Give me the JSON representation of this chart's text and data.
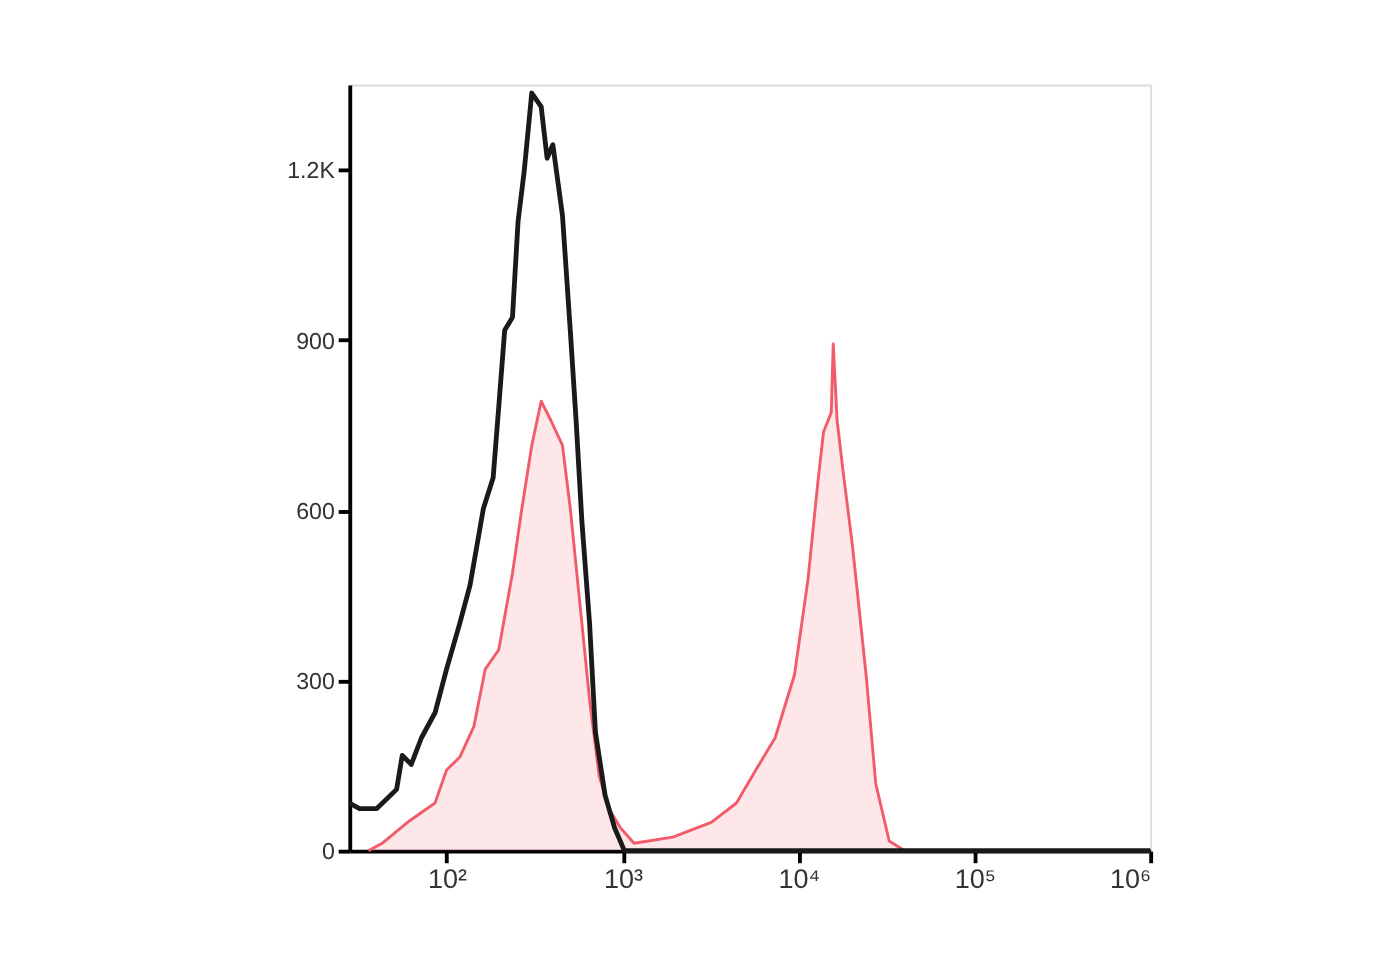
{
  "chart_data": {
    "type": "line",
    "xlim": [
      28,
      1000000
    ],
    "ylim": [
      0,
      1350
    ],
    "log": "x",
    "grid": false,
    "xticks": [
      {
        "value": 100,
        "label": "10²"
      },
      {
        "value": 1000,
        "label": "10³"
      },
      {
        "value": 10000,
        "label": "10⁴"
      },
      {
        "value": 100000,
        "label": "10⁵"
      },
      {
        "value": 1000000,
        "label": "10⁶"
      }
    ],
    "yticks": [
      0,
      300,
      600,
      900,
      {
        "value": 1200,
        "label": "1.2K"
      }
    ],
    "series": [
      {
        "type": "area",
        "color": "#f25c6a",
        "x": [
          36,
          43,
          60,
          86,
          100,
          119,
          143,
          166,
          198,
          237,
          268,
          305,
          345,
          392,
          456,
          505,
          573,
          650,
          738,
          838,
          975,
          1164,
          1932,
          3200,
          4446,
          5728,
          7379,
          9506,
          11350,
          12880,
          13900,
          15380,
          15780,
          16600,
          17910,
          20320,
          24260,
          27540,
          32830,
          40180,
          1000000
        ],
        "values": [
          0,
          13,
          50,
          84,
          142,
          165,
          219,
          320,
          354,
          489,
          603,
          714,
          792,
          758,
          714,
          603,
          435,
          266,
          131,
          74,
          40,
          13,
          24,
          50,
          84,
          142,
          199,
          310,
          479,
          647,
          738,
          772,
          893,
          758,
          671,
          536,
          310,
          118,
          17,
          0,
          0
        ]
      },
      {
        "color": "#1a1a1a",
        "x": [
          28,
          32,
          40,
          52,
          56,
          63,
          72,
          86,
          100,
          119,
          136,
          162,
          184,
          198,
          214,
          237,
          255,
          276,
          305,
          345,
          373,
          402,
          456,
          505,
          545,
          588,
          650,
          702,
          796,
          903,
          1025,
          1000000
        ],
        "values": [
          84,
          74,
          74,
          108,
          168,
          152,
          199,
          243,
          320,
          401,
          468,
          603,
          657,
          782,
          917,
          940,
          1109,
          1196,
          1335,
          1311,
          1220,
          1244,
          1119,
          917,
          758,
          580,
          401,
          209,
          98,
          40,
          0,
          0
        ]
      }
    ]
  }
}
